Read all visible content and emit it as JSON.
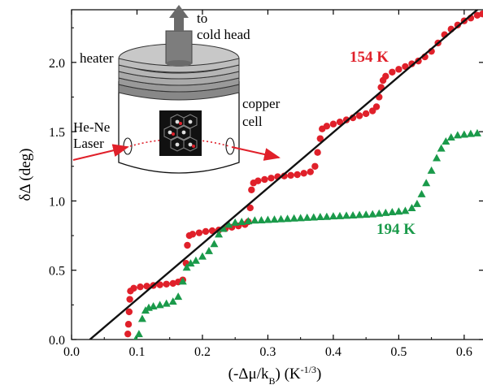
{
  "chart_data": {
    "type": "scatter",
    "title": "",
    "xlabel_parts": {
      "open": "(-Δμ/k",
      "sub": "B",
      "mid": ") (K",
      "sup": "-1/3",
      "close": ")"
    },
    "ylabel": "δΔ (deg)",
    "xlim": [
      0.0,
      0.63
    ],
    "ylim": [
      0.0,
      2.38
    ],
    "x_ticks": [
      "0.0",
      "0.1",
      "0.2",
      "0.3",
      "0.4",
      "0.5",
      "0.6"
    ],
    "y_ticks": [
      "0.0",
      "0.5",
      "1.0",
      "1.5",
      "2.0"
    ],
    "grid": false,
    "series": [
      {
        "name": "154 K",
        "marker": "circle",
        "color": "#e0202a",
        "points": [
          [
            0.086,
            0.04
          ],
          [
            0.087,
            0.11
          ],
          [
            0.088,
            0.2
          ],
          [
            0.089,
            0.29
          ],
          [
            0.09,
            0.35
          ],
          [
            0.095,
            0.37
          ],
          [
            0.105,
            0.38
          ],
          [
            0.115,
            0.385
          ],
          [
            0.125,
            0.39
          ],
          [
            0.135,
            0.395
          ],
          [
            0.145,
            0.4
          ],
          [
            0.155,
            0.405
          ],
          [
            0.163,
            0.415
          ],
          [
            0.17,
            0.43
          ],
          [
            0.175,
            0.55
          ],
          [
            0.177,
            0.68
          ],
          [
            0.18,
            0.75
          ],
          [
            0.185,
            0.76
          ],
          [
            0.195,
            0.77
          ],
          [
            0.205,
            0.78
          ],
          [
            0.215,
            0.785
          ],
          [
            0.225,
            0.79
          ],
          [
            0.235,
            0.8
          ],
          [
            0.245,
            0.81
          ],
          [
            0.255,
            0.82
          ],
          [
            0.265,
            0.83
          ],
          [
            0.27,
            0.85
          ],
          [
            0.273,
            0.95
          ],
          [
            0.275,
            1.08
          ],
          [
            0.278,
            1.13
          ],
          [
            0.285,
            1.145
          ],
          [
            0.295,
            1.155
          ],
          [
            0.305,
            1.165
          ],
          [
            0.315,
            1.175
          ],
          [
            0.325,
            1.18
          ],
          [
            0.335,
            1.185
          ],
          [
            0.345,
            1.19
          ],
          [
            0.355,
            1.2
          ],
          [
            0.365,
            1.21
          ],
          [
            0.372,
            1.25
          ],
          [
            0.376,
            1.35
          ],
          [
            0.38,
            1.45
          ],
          [
            0.383,
            1.52
          ],
          [
            0.39,
            1.54
          ],
          [
            0.4,
            1.555
          ],
          [
            0.41,
            1.57
          ],
          [
            0.42,
            1.585
          ],
          [
            0.43,
            1.6
          ],
          [
            0.44,
            1.615
          ],
          [
            0.45,
            1.63
          ],
          [
            0.46,
            1.65
          ],
          [
            0.466,
            1.68
          ],
          [
            0.47,
            1.75
          ],
          [
            0.473,
            1.82
          ],
          [
            0.476,
            1.87
          ],
          [
            0.48,
            1.9
          ],
          [
            0.49,
            1.93
          ],
          [
            0.5,
            1.95
          ],
          [
            0.51,
            1.97
          ],
          [
            0.52,
            1.99
          ],
          [
            0.53,
            2.01
          ],
          [
            0.54,
            2.04
          ],
          [
            0.55,
            2.08
          ],
          [
            0.56,
            2.14
          ],
          [
            0.57,
            2.2
          ],
          [
            0.58,
            2.24
          ],
          [
            0.59,
            2.27
          ],
          [
            0.6,
            2.3
          ],
          [
            0.61,
            2.32
          ],
          [
            0.62,
            2.34
          ],
          [
            0.628,
            2.35
          ]
        ]
      },
      {
        "name": "194 K",
        "marker": "triangle",
        "color": "#1a9a4a",
        "points": [
          [
            0.098,
            0.0
          ],
          [
            0.103,
            0.04
          ],
          [
            0.108,
            0.15
          ],
          [
            0.113,
            0.21
          ],
          [
            0.118,
            0.23
          ],
          [
            0.125,
            0.24
          ],
          [
            0.135,
            0.25
          ],
          [
            0.145,
            0.26
          ],
          [
            0.155,
            0.275
          ],
          [
            0.163,
            0.31
          ],
          [
            0.17,
            0.42
          ],
          [
            0.176,
            0.52
          ],
          [
            0.182,
            0.55
          ],
          [
            0.19,
            0.57
          ],
          [
            0.2,
            0.6
          ],
          [
            0.21,
            0.64
          ],
          [
            0.218,
            0.69
          ],
          [
            0.225,
            0.76
          ],
          [
            0.232,
            0.8
          ],
          [
            0.24,
            0.83
          ],
          [
            0.25,
            0.845
          ],
          [
            0.26,
            0.85
          ],
          [
            0.27,
            0.855
          ],
          [
            0.28,
            0.86
          ],
          [
            0.29,
            0.862
          ],
          [
            0.3,
            0.865
          ],
          [
            0.31,
            0.867
          ],
          [
            0.32,
            0.87
          ],
          [
            0.33,
            0.872
          ],
          [
            0.34,
            0.875
          ],
          [
            0.35,
            0.877
          ],
          [
            0.36,
            0.88
          ],
          [
            0.37,
            0.882
          ],
          [
            0.38,
            0.885
          ],
          [
            0.39,
            0.887
          ],
          [
            0.4,
            0.89
          ],
          [
            0.41,
            0.892
          ],
          [
            0.42,
            0.895
          ],
          [
            0.43,
            0.897
          ],
          [
            0.44,
            0.9
          ],
          [
            0.45,
            0.902
          ],
          [
            0.46,
            0.905
          ],
          [
            0.47,
            0.91
          ],
          [
            0.48,
            0.915
          ],
          [
            0.49,
            0.92
          ],
          [
            0.5,
            0.925
          ],
          [
            0.51,
            0.93
          ],
          [
            0.52,
            0.95
          ],
          [
            0.528,
            0.98
          ],
          [
            0.535,
            1.05
          ],
          [
            0.542,
            1.13
          ],
          [
            0.55,
            1.22
          ],
          [
            0.558,
            1.31
          ],
          [
            0.565,
            1.38
          ],
          [
            0.572,
            1.43
          ],
          [
            0.58,
            1.46
          ],
          [
            0.59,
            1.475
          ],
          [
            0.6,
            1.48
          ],
          [
            0.61,
            1.485
          ],
          [
            0.62,
            1.49
          ]
        ]
      }
    ],
    "fit_line": {
      "color": "#111111",
      "points": [
        [
          0.028,
          0.0
        ],
        [
          0.63,
          2.42
        ]
      ]
    },
    "annotations": {
      "inset_labels": {
        "to": "to",
        "cold_head": "cold head",
        "heater": "heater",
        "copper": "copper",
        "cell": "cell",
        "he_ne": "He-Ne",
        "laser": "Laser"
      }
    }
  }
}
